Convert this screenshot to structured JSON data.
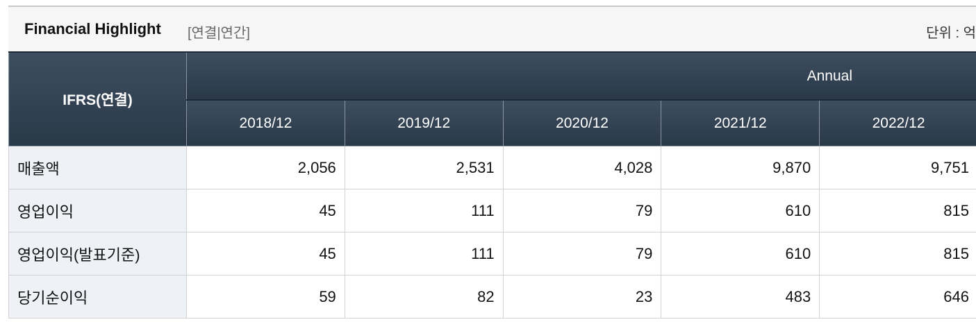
{
  "header": {
    "title": "Financial Highlight",
    "subtitle": "[연결|연간]",
    "unit": "단위 : 억"
  },
  "table": {
    "corner": "IFRS(연결)",
    "group": "Annual",
    "columns": [
      "2018/12",
      "2019/12",
      "2020/12",
      "2021/12",
      "2022/12"
    ],
    "rows": [
      {
        "label": "매출액",
        "values": [
          "2,056",
          "2,531",
          "4,028",
          "9,870",
          "9,751"
        ]
      },
      {
        "label": "영업이익",
        "values": [
          "45",
          "111",
          "79",
          "610",
          "815"
        ]
      },
      {
        "label": "영업이익(발표기준)",
        "values": [
          "45",
          "111",
          "79",
          "610",
          "815"
        ]
      },
      {
        "label": "당기순이익",
        "values": [
          "59",
          "82",
          "23",
          "483",
          "646"
        ]
      }
    ]
  }
}
